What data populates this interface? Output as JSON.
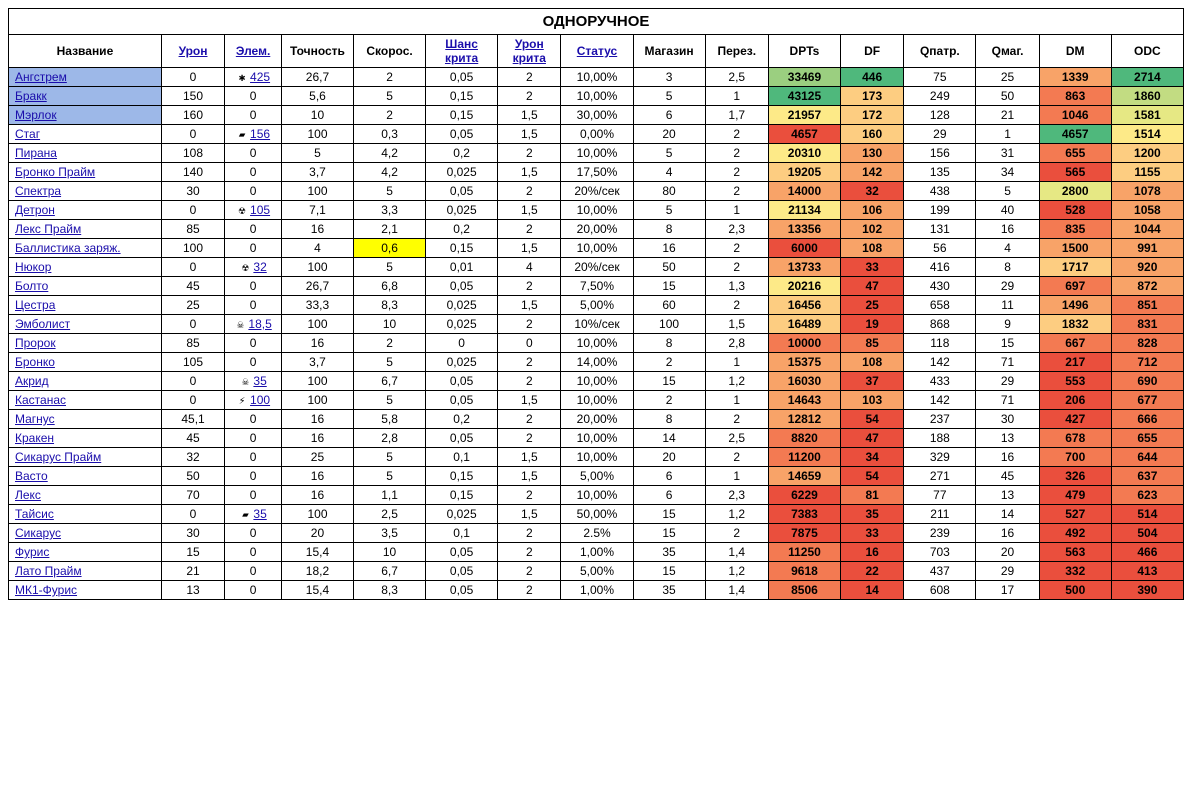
{
  "title": "ОДНОРУЧНОЕ",
  "headers": [
    {
      "label": "Название",
      "link": false
    },
    {
      "label": "Урон",
      "link": true
    },
    {
      "label": "Элем.",
      "link": true
    },
    {
      "label": "Точность",
      "link": false
    },
    {
      "label": "Скорос.",
      "link": false
    },
    {
      "label": "Шанс крита",
      "link": true
    },
    {
      "label": "Урон крита",
      "link": true
    },
    {
      "label": "Статус",
      "link": true
    },
    {
      "label": "Магазин",
      "link": false
    },
    {
      "label": "Перез.",
      "link": false
    },
    {
      "label": "DPTs",
      "link": false,
      "bold": true
    },
    {
      "label": "DF",
      "link": false,
      "bold": true
    },
    {
      "label": "Qпатр.",
      "link": false,
      "bold": true
    },
    {
      "label": "Qмаг.",
      "link": false,
      "bold": true
    },
    {
      "label": "DM",
      "link": false,
      "bold": true
    },
    {
      "label": "ODC",
      "link": false,
      "bold": true
    }
  ],
  "rows": [
    {
      "name": "Ангстрем",
      "hl": true,
      "et": "blast",
      "cells": [
        "0",
        "425",
        "26,7",
        "2",
        "0,05",
        "2",
        "10,00%",
        "3",
        "2,5",
        "33469",
        "446",
        "75",
        "25",
        "1339",
        "2714"
      ]
    },
    {
      "name": "Бракк",
      "hl": true,
      "et": "",
      "cells": [
        "150",
        "0",
        "5,6",
        "5",
        "0,15",
        "2",
        "10,00%",
        "5",
        "1",
        "43125",
        "173",
        "249",
        "50",
        "863",
        "1860"
      ]
    },
    {
      "name": "Мэрлок",
      "hl": true,
      "et": "",
      "cells": [
        "160",
        "0",
        "10",
        "2",
        "0,15",
        "1,5",
        "30,00%",
        "6",
        "1,7",
        "21957",
        "172",
        "128",
        "21",
        "1046",
        "1581"
      ]
    },
    {
      "name": "Стаг",
      "hl": false,
      "et": "corr",
      "cells": [
        "0",
        "156",
        "100",
        "0,3",
        "0,05",
        "1,5",
        "0,00%",
        "20",
        "2",
        "4657",
        "160",
        "29",
        "1",
        "4657",
        "1514"
      ]
    },
    {
      "name": "Пирана",
      "hl": false,
      "et": "",
      "cells": [
        "108",
        "0",
        "5",
        "4,2",
        "0,2",
        "2",
        "10,00%",
        "5",
        "2",
        "20310",
        "130",
        "156",
        "31",
        "655",
        "1200"
      ]
    },
    {
      "name": "Бронко Прайм",
      "hl": false,
      "et": "",
      "cells": [
        "140",
        "0",
        "3,7",
        "4,2",
        "0,025",
        "1,5",
        "17,50%",
        "4",
        "2",
        "19205",
        "142",
        "135",
        "34",
        "565",
        "1155"
      ]
    },
    {
      "name": "Спектра",
      "hl": false,
      "et": "",
      "cells": [
        "30",
        "0",
        "100",
        "5",
        "0,05",
        "2",
        "20%/сек",
        "80",
        "2",
        "14000",
        "32",
        "438",
        "5",
        "2800",
        "1078"
      ]
    },
    {
      "name": "Детрон",
      "hl": false,
      "et": "rad",
      "cells": [
        "0",
        "105",
        "7,1",
        "3,3",
        "0,025",
        "1,5",
        "10,00%",
        "5",
        "1",
        "21134",
        "106",
        "199",
        "40",
        "528",
        "1058"
      ]
    },
    {
      "name": "Лекс Прайм",
      "hl": false,
      "et": "",
      "cells": [
        "85",
        "0",
        "16",
        "2,1",
        "0,2",
        "2",
        "20,00%",
        "8",
        "2,3",
        "13356",
        "102",
        "131",
        "16",
        "835",
        "1044"
      ]
    },
    {
      "name": "Баллистика заряж.",
      "hl": false,
      "et": "",
      "cells": [
        "100",
        "0",
        "4",
        "0,6",
        "0,15",
        "1,5",
        "10,00%",
        "16",
        "2",
        "6000",
        "108",
        "56",
        "4",
        "1500",
        "991"
      ],
      "yellowIdx": 3
    },
    {
      "name": "Нюкор",
      "hl": false,
      "et": "rad",
      "cells": [
        "0",
        "32",
        "100",
        "5",
        "0,01",
        "4",
        "20%/сек",
        "50",
        "2",
        "13733",
        "33",
        "416",
        "8",
        "1717",
        "920"
      ]
    },
    {
      "name": "Болто",
      "hl": false,
      "et": "",
      "cells": [
        "45",
        "0",
        "26,7",
        "6,8",
        "0,05",
        "2",
        "7,50%",
        "15",
        "1,3",
        "20216",
        "47",
        "430",
        "29",
        "697",
        "872"
      ]
    },
    {
      "name": "Цестра",
      "hl": false,
      "et": "",
      "cells": [
        "25",
        "0",
        "33,3",
        "8,3",
        "0,025",
        "1,5",
        "5,00%",
        "60",
        "2",
        "16456",
        "25",
        "658",
        "11",
        "1496",
        "851"
      ]
    },
    {
      "name": "Эмболист",
      "hl": false,
      "et": "tox",
      "cells": [
        "0",
        "18,5",
        "100",
        "10",
        "0,025",
        "2",
        "10%/сек",
        "100",
        "1,5",
        "16489",
        "19",
        "868",
        "9",
        "1832",
        "831"
      ]
    },
    {
      "name": "Пророк",
      "hl": false,
      "et": "",
      "cells": [
        "85",
        "0",
        "16",
        "2",
        "0",
        "0",
        "10,00%",
        "8",
        "2,8",
        "10000",
        "85",
        "118",
        "15",
        "667",
        "828"
      ]
    },
    {
      "name": "Бронко",
      "hl": false,
      "et": "",
      "cells": [
        "105",
        "0",
        "3,7",
        "5",
        "0,025",
        "2",
        "14,00%",
        "2",
        "1",
        "15375",
        "108",
        "142",
        "71",
        "217",
        "712"
      ]
    },
    {
      "name": "Акрид",
      "hl": false,
      "et": "tox",
      "cells": [
        "0",
        "35",
        "100",
        "6,7",
        "0,05",
        "2",
        "10,00%",
        "15",
        "1,2",
        "16030",
        "37",
        "433",
        "29",
        "553",
        "690"
      ]
    },
    {
      "name": "Кастанас",
      "hl": false,
      "et": "elec",
      "cells": [
        "0",
        "100",
        "100",
        "5",
        "0,05",
        "1,5",
        "10,00%",
        "2",
        "1",
        "14643",
        "103",
        "142",
        "71",
        "206",
        "677"
      ]
    },
    {
      "name": "Магнус",
      "hl": false,
      "et": "",
      "cells": [
        "45,1",
        "0",
        "16",
        "5,8",
        "0,2",
        "2",
        "20,00%",
        "8",
        "2",
        "12812",
        "54",
        "237",
        "30",
        "427",
        "666"
      ]
    },
    {
      "name": "Кракен",
      "hl": false,
      "et": "",
      "cells": [
        "45",
        "0",
        "16",
        "2,8",
        "0,05",
        "2",
        "10,00%",
        "14",
        "2,5",
        "8820",
        "47",
        "188",
        "13",
        "678",
        "655"
      ]
    },
    {
      "name": "Сикарус Прайм",
      "hl": false,
      "et": "",
      "cells": [
        "32",
        "0",
        "25",
        "5",
        "0,1",
        "1,5",
        "10,00%",
        "20",
        "2",
        "11200",
        "34",
        "329",
        "16",
        "700",
        "644"
      ]
    },
    {
      "name": "Васто",
      "hl": false,
      "et": "",
      "cells": [
        "50",
        "0",
        "16",
        "5",
        "0,15",
        "1,5",
        "5,00%",
        "6",
        "1",
        "14659",
        "54",
        "271",
        "45",
        "326",
        "637"
      ]
    },
    {
      "name": "Лекс",
      "hl": false,
      "et": "",
      "cells": [
        "70",
        "0",
        "16",
        "1,1",
        "0,15",
        "2",
        "10,00%",
        "6",
        "2,3",
        "6229",
        "81",
        "77",
        "13",
        "479",
        "623"
      ]
    },
    {
      "name": "Тайсис",
      "hl": false,
      "et": "corr",
      "cells": [
        "0",
        "35",
        "100",
        "2,5",
        "0,025",
        "1,5",
        "50,00%",
        "15",
        "1,2",
        "7383",
        "35",
        "211",
        "14",
        "527",
        "514"
      ]
    },
    {
      "name": "Сикарус",
      "hl": false,
      "et": "",
      "cells": [
        "30",
        "0",
        "20",
        "3,5",
        "0,1",
        "2",
        "2.5%",
        "15",
        "2",
        "7875",
        "33",
        "239",
        "16",
        "492",
        "504"
      ]
    },
    {
      "name": "Фурис",
      "hl": false,
      "et": "",
      "cells": [
        "15",
        "0",
        "15,4",
        "10",
        "0,05",
        "2",
        "1,00%",
        "35",
        "1,4",
        "11250",
        "16",
        "703",
        "20",
        "563",
        "466"
      ]
    },
    {
      "name": "Лато Прайм",
      "hl": false,
      "et": "",
      "cells": [
        "21",
        "0",
        "18,2",
        "6,7",
        "0,05",
        "2",
        "5,00%",
        "15",
        "1,2",
        "9618",
        "22",
        "437",
        "29",
        "332",
        "413"
      ]
    },
    {
      "name": "МК1-Фурис",
      "hl": false,
      "et": "",
      "cells": [
        "13",
        "0",
        "15,4",
        "8,3",
        "0,05",
        "2",
        "1,00%",
        "35",
        "1,4",
        "8506",
        "14",
        "608",
        "17",
        "500",
        "390"
      ]
    }
  ],
  "heatmap": {
    "columns": {
      "9": "dpts",
      "10": "df",
      "13": "dm",
      "14": "odc"
    },
    "ranges": {
      "dpts": {
        "min": 4657,
        "max": 43125
      },
      "df": {
        "min": 14,
        "max": 446
      },
      "dm": {
        "min": 206,
        "max": 4657
      },
      "odc": {
        "min": 390,
        "max": 2714
      }
    },
    "colors": [
      "#ea4f3d",
      "#f37a52",
      "#f8a368",
      "#fdcd81",
      "#fdea88",
      "#e6e884",
      "#c2dc82",
      "#9bcf80",
      "#74c37e",
      "#4fb87c"
    ]
  },
  "iconMap": {
    "blast": "✱",
    "rad": "☢",
    "tox": "☠",
    "elec": "⚡",
    "corr": "▰"
  }
}
